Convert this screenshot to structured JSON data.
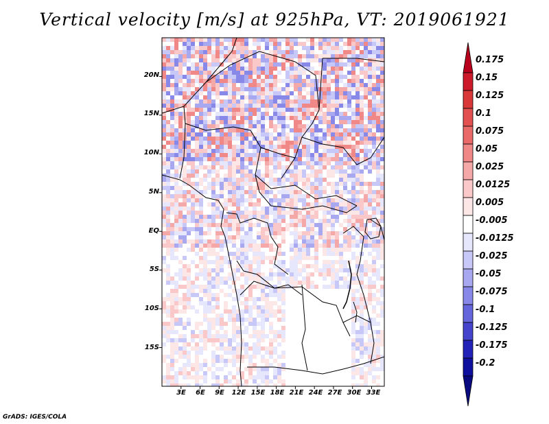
{
  "title": "Vertical velocity [m/s] at 925hPa, VT: 2019061921",
  "footer": "GrADS: IGES/COLA",
  "map": {
    "lat_range": [
      -20,
      25
    ],
    "lon_range": [
      0,
      35
    ],
    "lat_ticks": [
      "20N",
      "15N",
      "10N",
      "5N",
      "EQ",
      "5S",
      "10S",
      "15S"
    ],
    "lon_ticks": [
      "3E",
      "6E",
      "9E",
      "12E",
      "15E",
      "18E",
      "21E",
      "24E",
      "27E",
      "30E",
      "33E"
    ]
  },
  "colorbar": {
    "levels": [
      "0.175",
      "0.15",
      "0.125",
      "0.1",
      "0.075",
      "0.05",
      "0.025",
      "0.0125",
      "0.005",
      "-0.005",
      "-0.0125",
      "-0.025",
      "-0.05",
      "-0.075",
      "-0.1",
      "-0.125",
      "-0.175",
      "-0.2"
    ],
    "colors": [
      "#b8001c",
      "#cc1a2a",
      "#d93838",
      "#e35050",
      "#ea6a6a",
      "#f08888",
      "#f5a8a8",
      "#fac8c8",
      "#fde6e6",
      "#ffffff",
      "#e6e6fd",
      "#c8c8f8",
      "#a8a8f0",
      "#8888e8",
      "#6666dc",
      "#4444cc",
      "#2222b8",
      "#10109e",
      "#0a0a80"
    ]
  }
}
